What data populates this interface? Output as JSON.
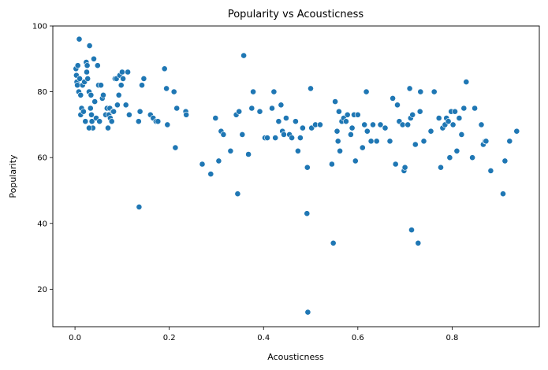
{
  "chart_data": {
    "type": "scatter",
    "title": "Popularity vs Acousticness",
    "xlabel": "Acousticness",
    "ylabel": "Popularity",
    "xlim": [
      -0.047,
      0.985
    ],
    "ylim": [
      8.6,
      100
    ],
    "xticks": [
      0.0,
      0.2,
      0.4,
      0.6,
      0.8
    ],
    "xtick_labels": [
      "0.0",
      "0.2",
      "0.4",
      "0.6",
      "0.8"
    ],
    "yticks": [
      20,
      40,
      60,
      80,
      100
    ],
    "ytick_labels": [
      "20",
      "40",
      "60",
      "80",
      "100"
    ],
    "grid": false,
    "marker_color": "#1f77b4",
    "points": [
      [
        0.002,
        87
      ],
      [
        0.003,
        85
      ],
      [
        0.004,
        83
      ],
      [
        0.006,
        88
      ],
      [
        0.005,
        82
      ],
      [
        0.008,
        80
      ],
      [
        0.01,
        84
      ],
      [
        0.012,
        79
      ],
      [
        0.014,
        75
      ],
      [
        0.012,
        73
      ],
      [
        0.009,
        96
      ],
      [
        0.016,
        82
      ],
      [
        0.018,
        74
      ],
      [
        0.02,
        83
      ],
      [
        0.022,
        71
      ],
      [
        0.024,
        89
      ],
      [
        0.026,
        88
      ],
      [
        0.025,
        86
      ],
      [
        0.027,
        84
      ],
      [
        0.03,
        80
      ],
      [
        0.031,
        94
      ],
      [
        0.033,
        75
      ],
      [
        0.035,
        73
      ],
      [
        0.036,
        71
      ],
      [
        0.038,
        69
      ],
      [
        0.034,
        79
      ],
      [
        0.04,
        90
      ],
      [
        0.042,
        77
      ],
      [
        0.045,
        72
      ],
      [
        0.048,
        88
      ],
      [
        0.05,
        82
      ],
      [
        0.052,
        71
      ],
      [
        0.055,
        82
      ],
      [
        0.058,
        78
      ],
      [
        0.06,
        79
      ],
      [
        0.03,
        69
      ],
      [
        0.065,
        73
      ],
      [
        0.068,
        75
      ],
      [
        0.07,
        69
      ],
      [
        0.072,
        73
      ],
      [
        0.074,
        75
      ],
      [
        0.075,
        72
      ],
      [
        0.078,
        71
      ],
      [
        0.08,
        74
      ],
      [
        0.082,
        74
      ],
      [
        0.085,
        84
      ],
      [
        0.088,
        84
      ],
      [
        0.09,
        76
      ],
      [
        0.093,
        79
      ],
      [
        0.095,
        85
      ],
      [
        0.098,
        82
      ],
      [
        0.1,
        86
      ],
      [
        0.102,
        84
      ],
      [
        0.108,
        76
      ],
      [
        0.112,
        86
      ],
      [
        0.115,
        73
      ],
      [
        0.135,
        71
      ],
      [
        0.138,
        74
      ],
      [
        0.142,
        82
      ],
      [
        0.146,
        84
      ],
      [
        0.16,
        73
      ],
      [
        0.166,
        72
      ],
      [
        0.172,
        71
      ],
      [
        0.176,
        71
      ],
      [
        0.19,
        87
      ],
      [
        0.194,
        81
      ],
      [
        0.196,
        70
      ],
      [
        0.21,
        80
      ],
      [
        0.213,
        63
      ],
      [
        0.216,
        75
      ],
      [
        0.235,
        74
      ],
      [
        0.236,
        73
      ],
      [
        0.136,
        45
      ],
      [
        0.27,
        58
      ],
      [
        0.288,
        55
      ],
      [
        0.298,
        72
      ],
      [
        0.305,
        59
      ],
      [
        0.31,
        68
      ],
      [
        0.315,
        67
      ],
      [
        0.33,
        62
      ],
      [
        0.342,
        73
      ],
      [
        0.348,
        74
      ],
      [
        0.355,
        67
      ],
      [
        0.345,
        49
      ],
      [
        0.358,
        91
      ],
      [
        0.368,
        61
      ],
      [
        0.375,
        75
      ],
      [
        0.378,
        80
      ],
      [
        0.392,
        74
      ],
      [
        0.403,
        66
      ],
      [
        0.408,
        66
      ],
      [
        0.418,
        75
      ],
      [
        0.422,
        80
      ],
      [
        0.425,
        66
      ],
      [
        0.432,
        71
      ],
      [
        0.437,
        76
      ],
      [
        0.44,
        68
      ],
      [
        0.443,
        67
      ],
      [
        0.448,
        72
      ],
      [
        0.455,
        67
      ],
      [
        0.46,
        66
      ],
      [
        0.468,
        71
      ],
      [
        0.473,
        62
      ],
      [
        0.478,
        66
      ],
      [
        0.483,
        69
      ],
      [
        0.493,
        57
      ],
      [
        0.5,
        81
      ],
      [
        0.502,
        69
      ],
      [
        0.51,
        70
      ],
      [
        0.52,
        70
      ],
      [
        0.492,
        43
      ],
      [
        0.494,
        13
      ],
      [
        0.545,
        58
      ],
      [
        0.548,
        34
      ],
      [
        0.552,
        77
      ],
      [
        0.556,
        68
      ],
      [
        0.558,
        65
      ],
      [
        0.56,
        74
      ],
      [
        0.562,
        62
      ],
      [
        0.566,
        71
      ],
      [
        0.57,
        72
      ],
      [
        0.575,
        71
      ],
      [
        0.578,
        73
      ],
      [
        0.585,
        67
      ],
      [
        0.588,
        69
      ],
      [
        0.592,
        73
      ],
      [
        0.595,
        59
      ],
      [
        0.6,
        73
      ],
      [
        0.61,
        63
      ],
      [
        0.614,
        70
      ],
      [
        0.618,
        80
      ],
      [
        0.62,
        68
      ],
      [
        0.628,
        65
      ],
      [
        0.632,
        70
      ],
      [
        0.64,
        65
      ],
      [
        0.648,
        70
      ],
      [
        0.658,
        69
      ],
      [
        0.668,
        65
      ],
      [
        0.674,
        78
      ],
      [
        0.68,
        58
      ],
      [
        0.684,
        76
      ],
      [
        0.688,
        71
      ],
      [
        0.695,
        70
      ],
      [
        0.698,
        56
      ],
      [
        0.7,
        57
      ],
      [
        0.706,
        70
      ],
      [
        0.71,
        81
      ],
      [
        0.712,
        72
      ],
      [
        0.714,
        38
      ],
      [
        0.716,
        73
      ],
      [
        0.722,
        64
      ],
      [
        0.728,
        34
      ],
      [
        0.732,
        74
      ],
      [
        0.733,
        80
      ],
      [
        0.74,
        65
      ],
      [
        0.755,
        68
      ],
      [
        0.762,
        80
      ],
      [
        0.772,
        72
      ],
      [
        0.776,
        57
      ],
      [
        0.78,
        69
      ],
      [
        0.785,
        70
      ],
      [
        0.788,
        72
      ],
      [
        0.792,
        71
      ],
      [
        0.795,
        60
      ],
      [
        0.798,
        74
      ],
      [
        0.802,
        70
      ],
      [
        0.806,
        74
      ],
      [
        0.81,
        62
      ],
      [
        0.815,
        72
      ],
      [
        0.82,
        67
      ],
      [
        0.825,
        75
      ],
      [
        0.83,
        83
      ],
      [
        0.843,
        60
      ],
      [
        0.848,
        75
      ],
      [
        0.862,
        70
      ],
      [
        0.866,
        64
      ],
      [
        0.87,
        65
      ],
      [
        0.872,
        65
      ],
      [
        0.882,
        56
      ],
      [
        0.908,
        49
      ],
      [
        0.912,
        59
      ],
      [
        0.922,
        65
      ],
      [
        0.937,
        68
      ]
    ]
  }
}
